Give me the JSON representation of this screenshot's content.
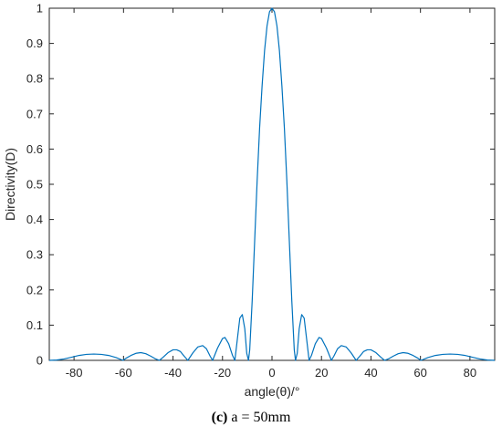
{
  "chart_data": {
    "type": "line",
    "title": "",
    "xlabel": "angle(θ)/°",
    "ylabel": "Directivity(D)",
    "xlim": [
      -90,
      90
    ],
    "ylim": [
      0,
      1
    ],
    "xticks": [
      -80,
      -60,
      -40,
      -20,
      0,
      20,
      40,
      60,
      80
    ],
    "yticks": [
      0,
      0.1,
      0.2,
      0.3,
      0.4,
      0.5,
      0.6,
      0.7,
      0.8,
      0.9,
      1
    ],
    "xtick_labels": [
      "-80",
      "-60",
      "-40",
      "-20",
      "0",
      "20",
      "40",
      "60",
      "80"
    ],
    "ytick_labels": [
      "0",
      "0.1",
      "0.2",
      "0.3",
      "0.4",
      "0.5",
      "0.6",
      "0.7",
      "0.8",
      "0.9",
      "1"
    ],
    "grid": false,
    "series": [
      {
        "color": "#0072BD",
        "x": [
          -90,
          -87,
          -84,
          -81,
          -78,
          -75,
          -72,
          -69,
          -66,
          -63,
          -60.2,
          -59,
          -57,
          -55,
          -53,
          -51,
          -49,
          -47,
          -45.5,
          -44,
          -42,
          -40,
          -38.5,
          -37,
          -35.5,
          -34,
          -32,
          -30,
          -28,
          -26.5,
          -25,
          -24,
          -22,
          -20,
          -19,
          -17.5,
          -16,
          -15,
          -14,
          -13,
          -12,
          -11,
          -10.2,
          -9.5,
          -9,
          -8,
          -7,
          -6,
          -5,
          -4,
          -3,
          -2,
          -1,
          0,
          1,
          2,
          3,
          4,
          5,
          6,
          7,
          8,
          9,
          9.5,
          10.2,
          11,
          12,
          13,
          14,
          15,
          16,
          17.5,
          19,
          20,
          22,
          24,
          25,
          26.5,
          28,
          30,
          32,
          34,
          35.5,
          37,
          38.5,
          40,
          42,
          44,
          45.5,
          47,
          49,
          51,
          53,
          55,
          57,
          59,
          60.2,
          63,
          66,
          69,
          72,
          75,
          78,
          81,
          84,
          87,
          90
        ],
        "y": [
          0,
          0.001,
          0.004,
          0.009,
          0.014,
          0.017,
          0.018,
          0.017,
          0.014,
          0.008,
          0,
          0.006,
          0.014,
          0.02,
          0.022,
          0.019,
          0.012,
          0.004,
          0,
          0.009,
          0.022,
          0.03,
          0.03,
          0.025,
          0.012,
          0,
          0.021,
          0.038,
          0.042,
          0.033,
          0.012,
          0,
          0.035,
          0.062,
          0.065,
          0.047,
          0.015,
          0,
          0.06,
          0.12,
          0.13,
          0.09,
          0.02,
          0,
          0.03,
          0.17,
          0.34,
          0.51,
          0.66,
          0.78,
          0.88,
          0.95,
          0.99,
          1.0,
          0.99,
          0.95,
          0.88,
          0.78,
          0.66,
          0.51,
          0.34,
          0.17,
          0.03,
          0,
          0.02,
          0.09,
          0.13,
          0.12,
          0.06,
          0,
          0.015,
          0.047,
          0.065,
          0.062,
          0.035,
          0,
          0.012,
          0.033,
          0.042,
          0.038,
          0.021,
          0,
          0.012,
          0.025,
          0.03,
          0.03,
          0.022,
          0.009,
          0,
          0.004,
          0.012,
          0.019,
          0.022,
          0.02,
          0.014,
          0.006,
          0,
          0.008,
          0.014,
          0.017,
          0.018,
          0.017,
          0.014,
          0.009,
          0.004,
          0.001,
          0
        ]
      }
    ]
  },
  "caption": {
    "label": "(c)",
    "text": " a = 50mm"
  }
}
